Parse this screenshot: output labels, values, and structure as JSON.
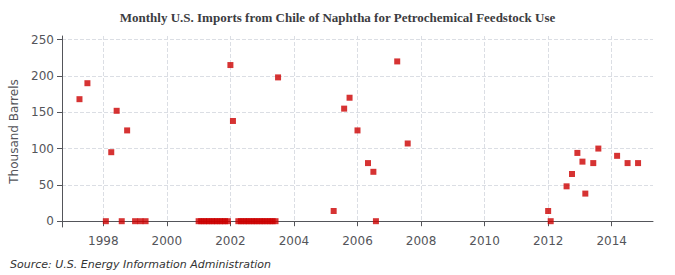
{
  "chart_data": {
    "type": "scatter",
    "title": "Monthly U.S. Imports from Chile of Naphtha for Petrochemical Feedstock Use",
    "ylabel": "Thousand Barrels",
    "annotations": [
      "Source: U.S. Energy Information Administration"
    ],
    "color": "#cc0000",
    "marker": "square",
    "grid": true,
    "xlim": [
      1996.7,
      2015.3
    ],
    "ylim": [
      -8,
      255
    ],
    "xticks": [
      1998,
      2000,
      2002,
      2004,
      2006,
      2008,
      2010,
      2012,
      2014
    ],
    "yticks": [
      0,
      50,
      100,
      150,
      200,
      250
    ],
    "x": [
      1997.25,
      1997.5,
      1998.08,
      1998.25,
      1998.42,
      1998.58,
      1998.75,
      1999.0,
      1999.17,
      1999.33,
      2001.0,
      2001.08,
      2001.17,
      2001.25,
      2001.33,
      2001.42,
      2001.5,
      2001.58,
      2001.67,
      2001.75,
      2001.83,
      2001.92,
      2002.0,
      2002.08,
      2002.25,
      2002.33,
      2002.42,
      2002.5,
      2002.58,
      2002.67,
      2002.75,
      2002.83,
      2002.92,
      2003.0,
      2003.08,
      2003.17,
      2003.25,
      2003.33,
      2003.42,
      2003.5,
      2005.25,
      2005.58,
      2005.75,
      2006.0,
      2006.33,
      2006.5,
      2006.58,
      2007.25,
      2007.58,
      2012.0,
      2012.08,
      2012.58,
      2012.75,
      2012.92,
      2013.08,
      2013.17,
      2013.42,
      2013.58,
      2014.17,
      2014.5,
      2014.83
    ],
    "values": [
      168,
      190,
      0,
      95,
      152,
      0,
      125,
      0,
      0,
      0,
      0,
      0,
      0,
      0,
      0,
      0,
      0,
      0,
      0,
      0,
      0,
      0,
      215,
      138,
      0,
      0,
      0,
      0,
      0,
      0,
      0,
      0,
      0,
      0,
      0,
      0,
      0,
      0,
      0,
      198,
      14,
      155,
      170,
      125,
      80,
      68,
      0,
      220,
      107,
      14,
      0,
      48,
      65,
      94,
      82,
      38,
      80,
      100,
      90,
      80,
      80
    ]
  }
}
